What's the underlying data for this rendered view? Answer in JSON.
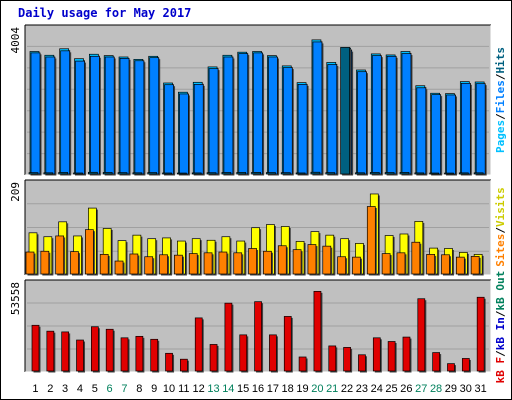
{
  "title": "Daily usage for May 2017",
  "colors": {
    "background": "#c0c0c0",
    "title": "#0000cc",
    "pages": "#006080",
    "files": "#0080ff",
    "hits": "#00c0ff",
    "sites": "#ff8000",
    "visits": "#ffff00",
    "kbytes": "#e00000",
    "weekend_label": "#00805c",
    "weekday_label": "#000000"
  },
  "chart_data": [
    {
      "type": "bar",
      "name": "hits-files-pages",
      "categories": [
        "1",
        "2",
        "3",
        "4",
        "5",
        "6",
        "7",
        "8",
        "9",
        "10",
        "11",
        "12",
        "13",
        "14",
        "15",
        "16",
        "17",
        "18",
        "19",
        "20",
        "21",
        "22",
        "23",
        "24",
        "25",
        "26",
        "27",
        "28",
        "29",
        "30",
        "31"
      ],
      "ymax_label": "4004",
      "ylim": [
        0,
        4004
      ],
      "legend": [
        "Pages",
        "/",
        "Files",
        "/",
        "Hits"
      ],
      "series": [
        {
          "name": "Hits",
          "color_key": "hits",
          "values": [
            3580,
            3470,
            3660,
            3370,
            3500,
            3460,
            3420,
            3350,
            3440,
            2660,
            2390,
            2680,
            3130,
            3470,
            3560,
            3580,
            3460,
            3160,
            2670,
            3920,
            3260,
            3680,
            3040,
            3510,
            3480,
            3580,
            2580,
            2360,
            2350,
            2700,
            2690
          ]
        },
        {
          "name": "Files",
          "color_key": "files",
          "values": [
            3540,
            3420,
            3600,
            3300,
            3440,
            3420,
            3380,
            3310,
            3400,
            2610,
            2340,
            2620,
            3080,
            3420,
            3520,
            3540,
            3420,
            3110,
            2620,
            3860,
            3200,
            3620,
            2990,
            3460,
            3440,
            3520,
            2520,
            2320,
            2310,
            2650,
            2640
          ]
        },
        {
          "name": "Pages",
          "color_key": "pages",
          "values": [
            40,
            35,
            45,
            30,
            50,
            45,
            40,
            35,
            42,
            30,
            28,
            32,
            38,
            44,
            46,
            48,
            43,
            39,
            31,
            52,
            40,
            3700,
            36,
            45,
            43,
            47,
            33,
            29,
            28,
            34,
            35
          ]
        }
      ]
    },
    {
      "type": "bar",
      "name": "visits-sites",
      "categories": [
        "1",
        "2",
        "3",
        "4",
        "5",
        "6",
        "7",
        "8",
        "9",
        "10",
        "11",
        "12",
        "13",
        "14",
        "15",
        "16",
        "17",
        "18",
        "19",
        "20",
        "21",
        "22",
        "23",
        "24",
        "25",
        "26",
        "27",
        "28",
        "29",
        "30",
        "31"
      ],
      "ymax_label": "209",
      "ylim": [
        0,
        209
      ],
      "legend": [
        "Sites",
        "/",
        "Visits"
      ],
      "series": [
        {
          "name": "Visits",
          "color_key": "visits",
          "values": [
            105,
            95,
            133,
            97,
            168,
            116,
            85,
            99,
            90,
            92,
            84,
            90,
            86,
            95,
            84,
            118,
            126,
            121,
            83,
            108,
            99,
            90,
            78,
            204,
            98,
            102,
            134,
            66,
            65,
            55,
            50
          ]
        },
        {
          "name": "Sites",
          "color_key": "sites",
          "values": [
            56,
            58,
            97,
            57,
            113,
            50,
            33,
            51,
            44,
            49,
            48,
            52,
            54,
            56,
            54,
            65,
            58,
            72,
            62,
            75,
            71,
            44,
            43,
            172,
            52,
            54,
            81,
            50,
            49,
            43,
            45
          ]
        }
      ]
    },
    {
      "type": "bar",
      "name": "kbytes",
      "categories": [
        "1",
        "2",
        "3",
        "4",
        "5",
        "6",
        "7",
        "8",
        "9",
        "10",
        "11",
        "12",
        "13",
        "14",
        "15",
        "16",
        "17",
        "18",
        "19",
        "20",
        "21",
        "22",
        "23",
        "24",
        "25",
        "26",
        "27",
        "28",
        "29",
        "30",
        "31"
      ],
      "ymax_label": "53558",
      "ylim": [
        0,
        53558
      ],
      "legend": [
        "kB F",
        "/",
        "kB In",
        "/",
        "kB Out"
      ],
      "series": [
        {
          "name": "kB F",
          "color_key": "kbytes",
          "values": [
            31000,
            27000,
            26500,
            21000,
            30000,
            28300,
            22500,
            23500,
            21500,
            12000,
            8000,
            36000,
            18000,
            46000,
            24500,
            47000,
            24500,
            37000,
            9500,
            54000,
            17000,
            16000,
            11000,
            22500,
            20000,
            23000,
            49000,
            12500,
            5000,
            8500,
            50000
          ]
        }
      ]
    }
  ],
  "x_labels": [
    {
      "text": "1",
      "weekend": false
    },
    {
      "text": "2",
      "weekend": false
    },
    {
      "text": "3",
      "weekend": false
    },
    {
      "text": "4",
      "weekend": false
    },
    {
      "text": "5",
      "weekend": false
    },
    {
      "text": "6",
      "weekend": true
    },
    {
      "text": "7",
      "weekend": true
    },
    {
      "text": "8",
      "weekend": false
    },
    {
      "text": "9",
      "weekend": false
    },
    {
      "text": "10",
      "weekend": false
    },
    {
      "text": "11",
      "weekend": false
    },
    {
      "text": "12",
      "weekend": false
    },
    {
      "text": "13",
      "weekend": true
    },
    {
      "text": "14",
      "weekend": true
    },
    {
      "text": "15",
      "weekend": false
    },
    {
      "text": "16",
      "weekend": false
    },
    {
      "text": "17",
      "weekend": false
    },
    {
      "text": "18",
      "weekend": false
    },
    {
      "text": "19",
      "weekend": false
    },
    {
      "text": "20",
      "weekend": true
    },
    {
      "text": "21",
      "weekend": true
    },
    {
      "text": "22",
      "weekend": false
    },
    {
      "text": "23",
      "weekend": false
    },
    {
      "text": "24",
      "weekend": false
    },
    {
      "text": "25",
      "weekend": false
    },
    {
      "text": "26",
      "weekend": false
    },
    {
      "text": "27",
      "weekend": true
    },
    {
      "text": "28",
      "weekend": true
    },
    {
      "text": "29",
      "weekend": false
    },
    {
      "text": "30",
      "weekend": false
    },
    {
      "text": "31",
      "weekend": false
    }
  ]
}
